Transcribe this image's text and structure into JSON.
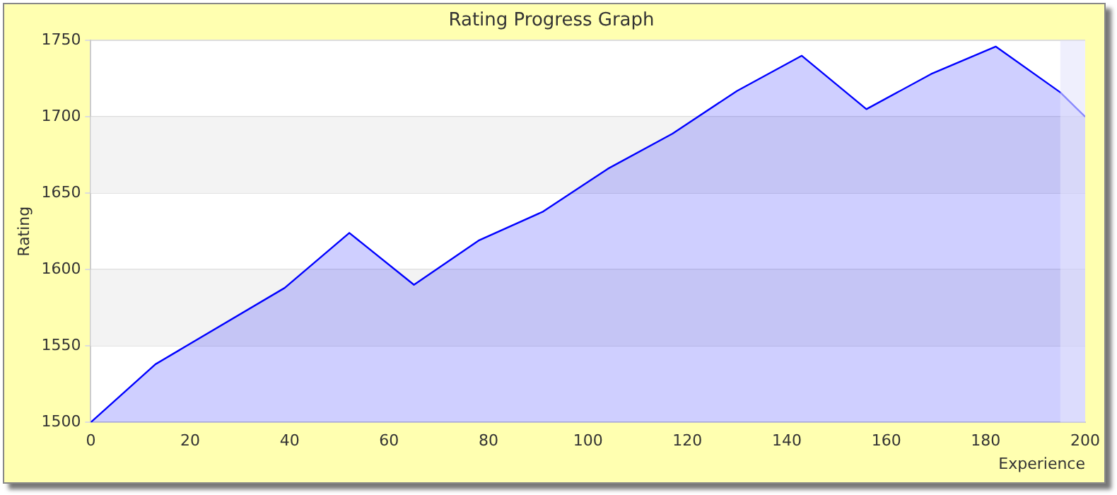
{
  "chart_data": {
    "type": "area",
    "title": "Rating Progress Graph",
    "xlabel": "Experience",
    "ylabel": "Rating",
    "x": [
      0,
      13,
      39,
      52,
      65,
      78,
      91,
      104,
      117,
      130,
      143,
      156,
      169,
      182,
      195,
      200
    ],
    "series": [
      {
        "color": "#0000ff",
        "values": [
          1500,
          1538,
          1588,
          1624,
          1590,
          1619,
          1638,
          1666,
          1689,
          1717,
          1740,
          1705,
          1728,
          1746,
          1716,
          1700
        ]
      }
    ],
    "xlim": [
      0,
      200
    ],
    "xticks": [
      0,
      20,
      40,
      60,
      80,
      100,
      120,
      140,
      160,
      180,
      200
    ],
    "ylim": [
      1500,
      1750
    ],
    "yticks": [
      1500,
      1550,
      1600,
      1650,
      1700,
      1750
    ],
    "grid": "y",
    "legend": false,
    "marker": "none",
    "bands": [
      {
        "axis": "y",
        "from": 1550,
        "to": 1600,
        "color": "#f3f3f3"
      },
      {
        "axis": "y",
        "from": 1650,
        "to": 1700,
        "color": "#f3f3f3"
      },
      {
        "axis": "x",
        "from": 195,
        "to": 200,
        "color": "#e4e4fb"
      }
    ]
  }
}
